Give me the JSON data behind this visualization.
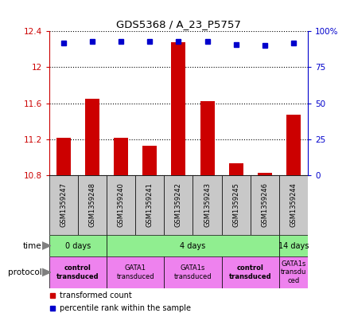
{
  "title": "GDS5368 / A_23_P5757",
  "samples": [
    "GSM1359247",
    "GSM1359248",
    "GSM1359240",
    "GSM1359241",
    "GSM1359242",
    "GSM1359243",
    "GSM1359245",
    "GSM1359246",
    "GSM1359244"
  ],
  "red_values": [
    11.22,
    11.65,
    11.22,
    11.13,
    12.28,
    11.62,
    10.93,
    10.83,
    11.47
  ],
  "blue_values": [
    92,
    93,
    93,
    93,
    93,
    93,
    91,
    90,
    92
  ],
  "ylim_left": [
    10.8,
    12.4
  ],
  "ylim_right": [
    0,
    100
  ],
  "yticks_left": [
    10.8,
    11.2,
    11.6,
    12.0,
    12.4
  ],
  "yticks_right": [
    0,
    25,
    50,
    75,
    100
  ],
  "ytick_labels_left": [
    "10.8",
    "11.2",
    "11.6",
    "12",
    "12.4"
  ],
  "ytick_labels_right": [
    "0",
    "25",
    "50",
    "75",
    "100%"
  ],
  "bar_color": "#cc0000",
  "dot_color": "#0000cc",
  "bar_width": 0.5,
  "background_color": "#ffffff",
  "left_axis_color": "#cc0000",
  "right_axis_color": "#0000cc",
  "sample_box_color": "#c8c8c8",
  "time_color": "#90ee90",
  "proto_color": "#ee82ee",
  "time_groups": [
    {
      "label": "0 days",
      "start": 0,
      "end": 2
    },
    {
      "label": "4 days",
      "start": 2,
      "end": 8
    },
    {
      "label": "14 days",
      "start": 8,
      "end": 9
    }
  ],
  "protocol_groups": [
    {
      "label": "control\ntransduced",
      "start": 0,
      "end": 2,
      "bold": true
    },
    {
      "label": "GATA1\ntransduced",
      "start": 2,
      "end": 4,
      "bold": false
    },
    {
      "label": "GATA1s\ntransduced",
      "start": 4,
      "end": 6,
      "bold": false
    },
    {
      "label": "control\ntransduced",
      "start": 6,
      "end": 8,
      "bold": true
    },
    {
      "label": "GATA1s\ntransdu\nced",
      "start": 8,
      "end": 9,
      "bold": false
    }
  ]
}
